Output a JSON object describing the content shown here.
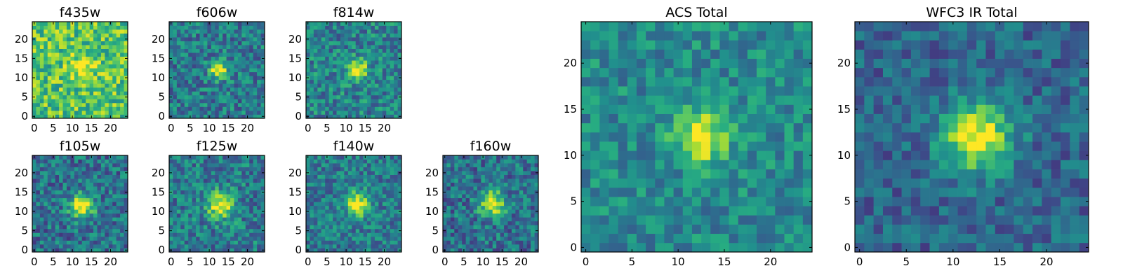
{
  "chart_data": [
    {
      "type": "heatmap",
      "title": "f435w",
      "blob": [
        13,
        13
      ],
      "sigma": 2.3,
      "amp": 0.3,
      "base": 0.72,
      "noise": 0.24,
      "seed": 11,
      "xticks": [
        "0",
        "5",
        "10",
        "15",
        "20"
      ],
      "yticks": [
        "0",
        "5",
        "10",
        "15",
        "20"
      ],
      "xlim": [
        0,
        25
      ],
      "ylim": [
        0,
        25
      ]
    },
    {
      "type": "heatmap",
      "title": "f606w",
      "blob": [
        12.5,
        12
      ],
      "sigma": 1.6,
      "amp": 0.62,
      "base": 0.42,
      "noise": 0.22,
      "seed": 23,
      "xticks": [
        "0",
        "5",
        "10",
        "15",
        "20"
      ],
      "yticks": [
        "0",
        "5",
        "10",
        "15",
        "20"
      ],
      "xlim": [
        0,
        25
      ],
      "ylim": [
        0,
        25
      ]
    },
    {
      "type": "heatmap",
      "title": "f814w",
      "blob": [
        13,
        12
      ],
      "sigma": 1.8,
      "amp": 0.62,
      "base": 0.45,
      "noise": 0.22,
      "seed": 37,
      "xticks": [
        "0",
        "5",
        "10",
        "15",
        "20"
      ],
      "yticks": [
        "0",
        "5",
        "10",
        "15",
        "20"
      ],
      "xlim": [
        0,
        25
      ],
      "ylim": [
        0,
        25
      ]
    },
    {
      "type": "heatmap",
      "title": "f105w",
      "blob": [
        12.5,
        11.5
      ],
      "sigma": 2.2,
      "amp": 0.65,
      "base": 0.38,
      "noise": 0.22,
      "seed": 41,
      "xticks": [
        "0",
        "5",
        "10",
        "15",
        "20"
      ],
      "yticks": [
        "0",
        "5",
        "10",
        "15",
        "20"
      ],
      "xlim": [
        0,
        25
      ],
      "ylim": [
        0,
        25
      ]
    },
    {
      "type": "heatmap",
      "title": "f125w",
      "blob": [
        13,
        11.5
      ],
      "sigma": 2.4,
      "amp": 0.6,
      "base": 0.42,
      "noise": 0.22,
      "seed": 53,
      "xticks": [
        "0",
        "5",
        "10",
        "15",
        "20"
      ],
      "yticks": [
        "0",
        "5",
        "10",
        "15",
        "20"
      ],
      "xlim": [
        0,
        25
      ],
      "ylim": [
        0,
        25
      ]
    },
    {
      "type": "heatmap",
      "title": "f140w",
      "blob": [
        13,
        12
      ],
      "sigma": 2.2,
      "amp": 0.58,
      "base": 0.42,
      "noise": 0.2,
      "seed": 67,
      "xticks": [
        "0",
        "5",
        "10",
        "15",
        "20"
      ],
      "yticks": [
        "0",
        "5",
        "10",
        "15",
        "20"
      ],
      "xlim": [
        0,
        25
      ],
      "ylim": [
        0,
        25
      ]
    },
    {
      "type": "heatmap",
      "title": "f160w",
      "blob": [
        12.5,
        12
      ],
      "sigma": 2.4,
      "amp": 0.6,
      "base": 0.38,
      "noise": 0.22,
      "seed": 79,
      "xticks": [
        "0",
        "5",
        "10",
        "15",
        "20"
      ],
      "yticks": [
        "0",
        "5",
        "10",
        "15",
        "20"
      ],
      "xlim": [
        0,
        25
      ],
      "ylim": [
        0,
        25
      ]
    },
    {
      "type": "heatmap",
      "title": "ACS Total",
      "blob": [
        12.5,
        12
      ],
      "sigma": 2.0,
      "amp": 0.55,
      "base": 0.48,
      "noise": 0.17,
      "seed": 91,
      "xticks": [
        "0",
        "5",
        "10",
        "15",
        "20"
      ],
      "yticks": [
        "0",
        "5",
        "10",
        "15",
        "20"
      ],
      "xlim": [
        0,
        25
      ],
      "ylim": [
        0,
        25
      ]
    },
    {
      "type": "heatmap",
      "title": "WFC3 IR Total",
      "blob": [
        12.5,
        12
      ],
      "sigma": 2.6,
      "amp": 0.7,
      "base": 0.33,
      "noise": 0.16,
      "seed": 103,
      "xticks": [
        "0",
        "5",
        "10",
        "15",
        "20"
      ],
      "yticks": [
        "0",
        "5",
        "10",
        "15",
        "20"
      ],
      "xlim": [
        0,
        25
      ],
      "ylim": [
        0,
        25
      ]
    }
  ]
}
